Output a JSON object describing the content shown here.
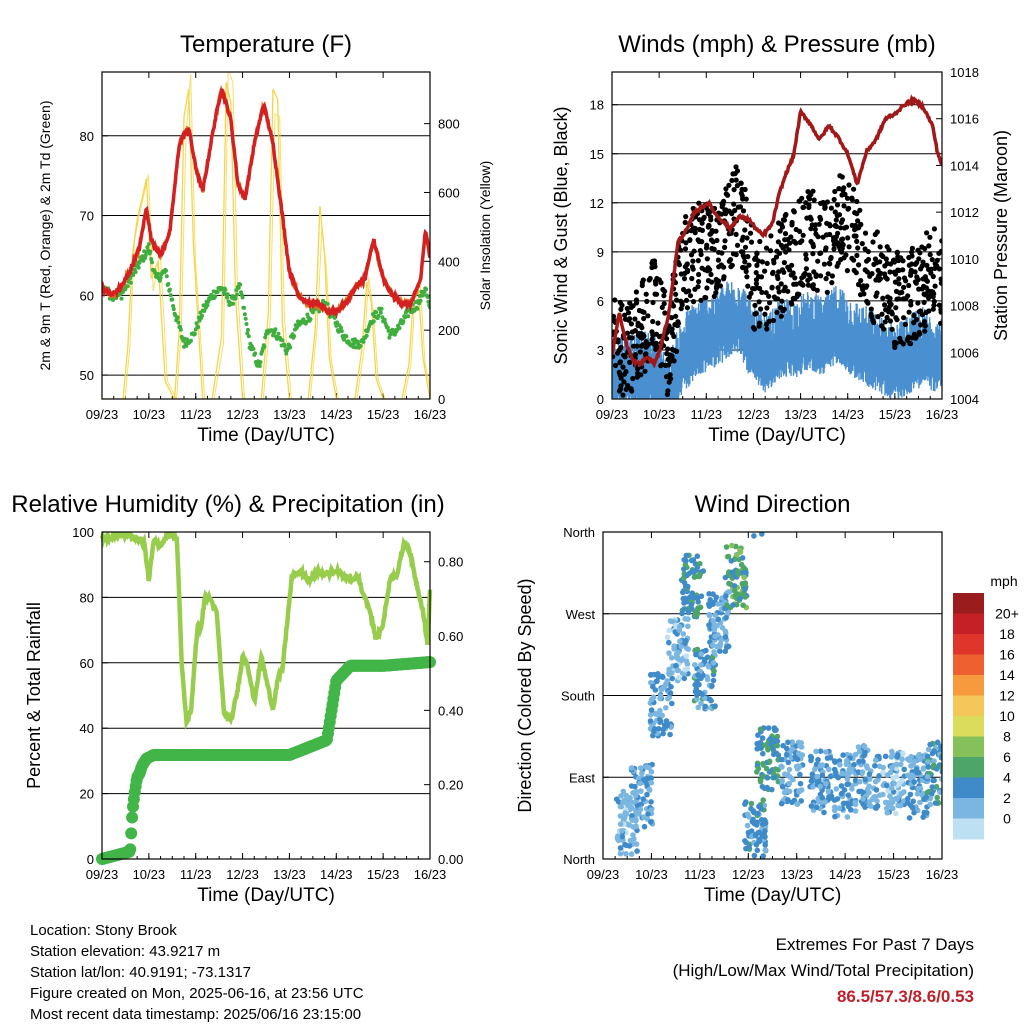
{
  "colors": {
    "temp_2m": "#d42020",
    "temp_9m": "#e07020",
    "dewpoint": "#3fae3f",
    "solar": "#f5d547",
    "sonic_wind": "#4a90d0",
    "gust": "#000000",
    "pressure": "#a01818",
    "rh": "#97cc4c",
    "rain": "#42b548",
    "extremes_text": "#c0202a"
  },
  "x_ticks": [
    "09/23",
    "10/23",
    "11/23",
    "12/23",
    "13/23",
    "14/23",
    "15/23",
    "16/23"
  ],
  "footer": {
    "location": "Location: Stony Brook",
    "elevation": "Station elevation: 43.9217 m",
    "latlon": "Station lat/lon: 40.9191; -73.1317",
    "created": "Figure created on Mon, 2025-06-16, at 23:56 UTC",
    "recent": "Most recent data timestamp: 2025/06/16 23:15:00"
  },
  "extremes": {
    "line1": "Extremes For Past 7 Days",
    "line2": "(High/Low/Max Wind/Total Precipitation)",
    "values": "86.5/57.3/8.6/0.53"
  },
  "chart_data": [
    {
      "type": "line",
      "title": "Temperature (F)",
      "xlabel": "Time (Day/UTC)",
      "ylabel": "2m & 9m T (Red, Orange) & 2m Td (Green)",
      "ylabel_right": "Solar Insolation (Yellow)",
      "x_ticks": [
        "09/23",
        "10/23",
        "11/23",
        "12/23",
        "13/23",
        "14/23",
        "15/23",
        "16/23"
      ],
      "xlim": [
        0,
        7
      ],
      "ylim": [
        47,
        88
      ],
      "yticks": [
        50,
        60,
        70,
        80
      ],
      "ylim_right": [
        0,
        950
      ],
      "yticks_right": [
        0,
        200,
        400,
        600,
        800
      ],
      "grid": "horizontal",
      "series": [
        {
          "name": "2m T",
          "axis": "left",
          "style": "line",
          "x": [
            0,
            0.2,
            0.4,
            0.6,
            0.8,
            0.95,
            1.05,
            1.25,
            1.45,
            1.65,
            1.85,
            2.0,
            2.15,
            2.35,
            2.55,
            2.75,
            2.9,
            3.05,
            3.25,
            3.45,
            3.65,
            3.85,
            4.0,
            4.2,
            4.4,
            4.6,
            4.8,
            5.0,
            5.2,
            5.4,
            5.6,
            5.8,
            6.0,
            6.2,
            6.4,
            6.6,
            6.8,
            6.9,
            7.0
          ],
          "y": [
            61,
            60,
            61,
            63,
            66,
            71,
            67,
            65,
            68,
            79,
            81,
            76,
            73,
            80,
            86,
            82,
            74,
            72,
            79,
            84,
            79,
            70,
            63,
            60,
            59,
            59,
            58,
            58,
            59,
            61,
            62,
            67,
            62,
            60,
            59,
            59,
            62,
            68,
            65
          ]
        },
        {
          "name": "2m Td",
          "axis": "left",
          "style": "dots",
          "x": [
            0,
            0.2,
            0.4,
            0.6,
            0.8,
            1.0,
            1.15,
            1.35,
            1.55,
            1.75,
            1.95,
            2.15,
            2.35,
            2.55,
            2.75,
            2.95,
            3.15,
            3.35,
            3.55,
            3.75,
            3.95,
            4.15,
            4.35,
            4.55,
            4.75,
            4.95,
            5.15,
            5.35,
            5.55,
            5.75,
            5.95,
            6.15,
            6.35,
            6.55,
            6.75,
            6.9,
            7.0
          ],
          "y": [
            61,
            60,
            60,
            62,
            64,
            66,
            62,
            63,
            58,
            54,
            55,
            58,
            60,
            61,
            59,
            61,
            54,
            51,
            56,
            55,
            53,
            56,
            57,
            58,
            59,
            57,
            55,
            54,
            54,
            57,
            58,
            55,
            56,
            58,
            59,
            61,
            58
          ]
        },
        {
          "name": "Solar Insolation",
          "axis": "right",
          "style": "thin",
          "x": [
            0,
            0.45,
            0.55,
            0.65,
            0.75,
            0.95,
            1.05,
            1.2,
            1.35,
            1.55,
            1.65,
            1.75,
            1.85,
            1.95,
            2.15,
            2.35,
            2.55,
            2.65,
            2.75,
            2.85,
            3.0,
            3.2,
            3.4,
            3.55,
            3.65,
            3.75,
            3.85,
            4.0,
            4.2,
            4.4,
            4.55,
            4.65,
            4.75,
            4.85,
            5.0,
            5.2,
            5.4,
            5.55,
            5.65,
            5.75,
            5.85,
            6.0,
            6.2,
            6.4,
            6.55,
            6.65,
            6.75,
            6.85,
            7.0
          ],
          "y": [
            0,
            0,
            150,
            420,
            520,
            640,
            350,
            400,
            50,
            0,
            200,
            820,
            900,
            450,
            0,
            0,
            180,
            920,
            860,
            300,
            0,
            0,
            0,
            250,
            900,
            870,
            220,
            0,
            0,
            0,
            200,
            560,
            420,
            120,
            0,
            0,
            0,
            150,
            340,
            280,
            60,
            0,
            0,
            0,
            100,
            300,
            320,
            120,
            0
          ]
        }
      ]
    },
    {
      "type": "scatter",
      "title": "Winds (mph) & Pressure (mb)",
      "xlabel": "Time (Day/UTC)",
      "ylabel": "Sonic Wind & Gust (Blue, Black)",
      "ylabel_right": "Station Pressure (Maroon)",
      "x_ticks": [
        "09/23",
        "10/23",
        "11/23",
        "12/23",
        "13/23",
        "14/23",
        "15/23",
        "16/23"
      ],
      "xlim": [
        0,
        7
      ],
      "ylim": [
        0,
        20
      ],
      "yticks": [
        0,
        3,
        6,
        9,
        12,
        15,
        18
      ],
      "ylim_right": [
        1004,
        1018
      ],
      "yticks_right": [
        1004,
        1006,
        1008,
        1010,
        1012,
        1014,
        1016,
        1018
      ],
      "grid": "horizontal",
      "series": [
        {
          "name": "Sonic Wind",
          "axis": "left",
          "style": "band",
          "x": [
            0,
            0.3,
            0.6,
            0.9,
            1.2,
            1.5,
            1.8,
            2.1,
            2.4,
            2.7,
            3.0,
            3.3,
            3.6,
            3.9,
            4.2,
            4.5,
            4.8,
            5.1,
            5.4,
            5.7,
            6.0,
            6.3,
            6.6,
            6.9,
            7.0
          ],
          "y": [
            2,
            2,
            2,
            2,
            0.5,
            3,
            4,
            4.5,
            5,
            5.5,
            3.5,
            3,
            4,
            4,
            4.5,
            4,
            5,
            4,
            3.5,
            3,
            2.5,
            3,
            3.5,
            3,
            3
          ]
        },
        {
          "name": "Gust",
          "axis": "left",
          "style": "dots",
          "x": [
            0,
            0.3,
            0.6,
            0.9,
            1.2,
            1.5,
            1.8,
            2.1,
            2.4,
            2.7,
            3.0,
            3.3,
            3.6,
            3.9,
            4.2,
            4.5,
            4.8,
            5.1,
            5.4,
            5.7,
            6.0,
            6.3,
            6.6,
            6.9,
            7.0
          ],
          "y": [
            4,
            3,
            4,
            6,
            3,
            8,
            9,
            9,
            10,
            12,
            7,
            7,
            8,
            9,
            10,
            9,
            11,
            10,
            8,
            7,
            6,
            6,
            7,
            8,
            7
          ]
        },
        {
          "name": "Station Pressure",
          "axis": "right",
          "style": "line",
          "x": [
            0,
            0.15,
            0.3,
            0.45,
            0.6,
            0.75,
            0.9,
            1.0,
            1.2,
            1.4,
            1.6,
            1.75,
            1.9,
            2.05,
            2.2,
            2.35,
            2.5,
            2.7,
            2.9,
            3.05,
            3.2,
            3.4,
            3.55,
            3.7,
            3.85,
            4.0,
            4.2,
            4.4,
            4.6,
            4.8,
            5.0,
            5.2,
            5.4,
            5.6,
            5.8,
            6.0,
            6.2,
            6.4,
            6.6,
            6.8,
            6.9,
            7.0
          ],
          "y": [
            1005.9,
            1007.7,
            1006.4,
            1005.6,
            1005.5,
            1005.8,
            1005.5,
            1006.0,
            1007.6,
            1010.7,
            1011.3,
            1012.0,
            1012.2,
            1012.4,
            1011.9,
            1011.6,
            1011.3,
            1011.8,
            1011.7,
            1011.3,
            1011.0,
            1011.5,
            1012.8,
            1013.7,
            1014.4,
            1016.3,
            1015.8,
            1015.1,
            1015.7,
            1015.2,
            1014.5,
            1013.2,
            1014.6,
            1015.1,
            1016.0,
            1016.2,
            1016.6,
            1016.8,
            1016.5,
            1015.7,
            1014.6,
            1014.0
          ]
        }
      ]
    },
    {
      "type": "line",
      "title": "Relative Humidity (%) & Precipitation (in)",
      "xlabel": "Time (Day/UTC)",
      "ylabel": "Percent & Total Rainfall",
      "x_ticks": [
        "09/23",
        "10/23",
        "11/23",
        "12/23",
        "13/23",
        "14/23",
        "15/23",
        "16/23"
      ],
      "xlim": [
        0,
        7
      ],
      "ylim": [
        0,
        100
      ],
      "yticks": [
        0,
        20,
        40,
        60,
        80,
        100
      ],
      "ylim_right": [
        0,
        0.88
      ],
      "yticks_right": [
        0.0,
        0.2,
        0.4,
        0.6,
        0.8
      ],
      "yticklabels_right": [
        "0.00",
        "0.20",
        "0.40",
        "0.60",
        "0.80"
      ],
      "grid": "horizontal",
      "series": [
        {
          "name": "RH",
          "axis": "left",
          "style": "line",
          "x": [
            0,
            0.1,
            0.3,
            0.6,
            0.9,
            1.0,
            1.1,
            1.25,
            1.4,
            1.5,
            1.6,
            1.7,
            1.8,
            1.9,
            2.0,
            2.05,
            2.1,
            2.2,
            2.3,
            2.45,
            2.6,
            2.75,
            2.9,
            3.0,
            3.1,
            3.25,
            3.4,
            3.55,
            3.65,
            3.75,
            3.85,
            3.95,
            4.05,
            4.25,
            4.4,
            4.6,
            4.8,
            5.0,
            5.2,
            5.35,
            5.45,
            5.55,
            5.7,
            5.85,
            6.0,
            6.15,
            6.3,
            6.45,
            6.55,
            6.7,
            6.85,
            6.95,
            7.0
          ],
          "y": [
            98,
            98,
            99,
            99,
            97,
            85,
            97,
            96,
            99,
            99,
            98,
            60,
            42,
            45,
            65,
            72,
            70,
            80,
            80,
            75,
            45,
            42,
            52,
            62,
            60,
            48,
            62,
            52,
            46,
            55,
            58,
            72,
            86,
            88,
            85,
            88,
            87,
            88,
            86,
            85,
            87,
            82,
            77,
            67,
            72,
            86,
            87,
            97,
            95,
            85,
            76,
            65,
            83
          ]
        },
        {
          "name": "Total Rainfall",
          "axis": "right",
          "style": "dots",
          "x": [
            0,
            0.3,
            0.6,
            0.65,
            0.7,
            0.75,
            0.8,
            0.85,
            0.95,
            1.1,
            1.3,
            2.0,
            3.0,
            4.0,
            4.8,
            5.0,
            5.3,
            6.0,
            7.0
          ],
          "y": [
            0.0,
            0.01,
            0.02,
            0.13,
            0.18,
            0.22,
            0.23,
            0.25,
            0.27,
            0.28,
            0.28,
            0.28,
            0.28,
            0.28,
            0.32,
            0.48,
            0.52,
            0.52,
            0.53
          ]
        }
      ]
    },
    {
      "type": "scatter",
      "title": "Wind Direction",
      "xlabel": "Time (Day/UTC)",
      "ylabel": "Direction (Colored By Speed)",
      "x_ticks": [
        "09/23",
        "10/23",
        "11/23",
        "12/23",
        "13/23",
        "14/23",
        "15/23",
        "16/23"
      ],
      "xlim": [
        0,
        7
      ],
      "ylim": [
        0,
        360
      ],
      "y_ticklabels": [
        "North",
        "East",
        "South",
        "West",
        "North"
      ],
      "grid": "horizontal",
      "color_scale": {
        "title": "mph",
        "labels": [
          "20+",
          "18",
          "16",
          "14",
          "12",
          "10",
          "8",
          "6",
          "4",
          "2",
          "0"
        ],
        "colors": [
          "#9b1c1c",
          "#c42026",
          "#e0352b",
          "#ef6030",
          "#f79a3e",
          "#f4c75a",
          "#dcdc5c",
          "#86c05a",
          "#4da56a",
          "#3f8bc9",
          "#7ab6e0",
          "#bde0f2"
        ]
      },
      "clusters": [
        {
          "x": 0.5,
          "dir": 40,
          "speed": 2
        },
        {
          "x": 0.8,
          "dir": 70,
          "speed": 3
        },
        {
          "x": 1.2,
          "dir": 170,
          "speed": 3
        },
        {
          "x": 1.55,
          "dir": 230,
          "speed": 2
        },
        {
          "x": 1.85,
          "dir": 300,
          "speed": 5
        },
        {
          "x": 2.1,
          "dir": 200,
          "speed": 4
        },
        {
          "x": 2.4,
          "dir": 260,
          "speed": 3
        },
        {
          "x": 2.75,
          "dir": 310,
          "speed": 6
        },
        {
          "x": 3.15,
          "dir": 30,
          "speed": 4
        },
        {
          "x": 3.4,
          "dir": 110,
          "speed": 5
        },
        {
          "x": 3.9,
          "dir": 95,
          "speed": 3
        },
        {
          "x": 4.5,
          "dir": 85,
          "speed": 3
        },
        {
          "x": 5.0,
          "dir": 80,
          "speed": 3
        },
        {
          "x": 5.5,
          "dir": 90,
          "speed": 3
        },
        {
          "x": 6.0,
          "dir": 85,
          "speed": 2
        },
        {
          "x": 6.5,
          "dir": 80,
          "speed": 3
        },
        {
          "x": 6.9,
          "dir": 95,
          "speed": 4
        }
      ]
    }
  ]
}
